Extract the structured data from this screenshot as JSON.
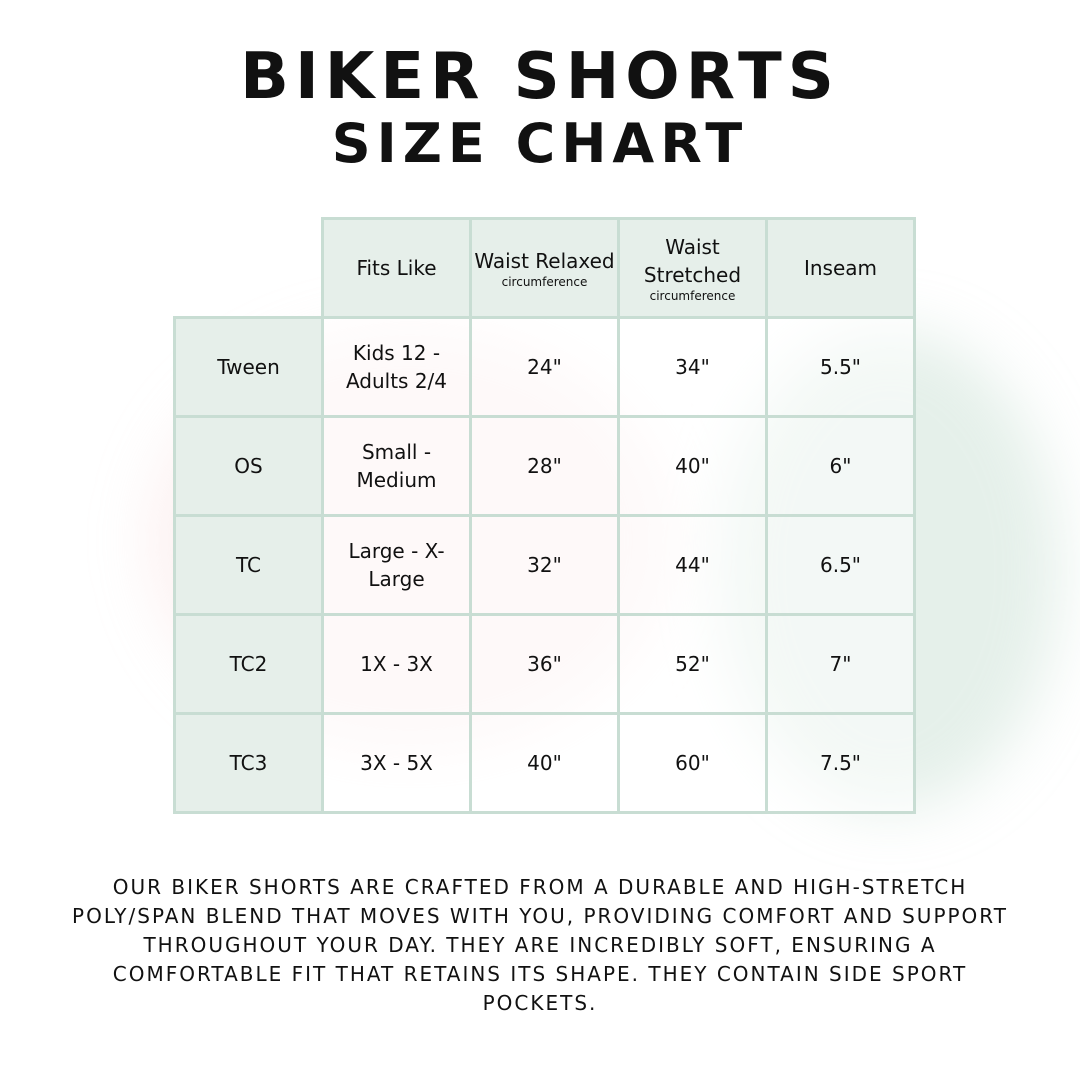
{
  "title_line1": "BIKER SHORTS",
  "title_line2": "SIZE CHART",
  "table": {
    "headers": [
      {
        "label": "Fits Like",
        "sub": ""
      },
      {
        "label": "Waist Relaxed",
        "sub": "circumference"
      },
      {
        "label": "Waist Stretched",
        "sub": "circumference"
      },
      {
        "label": "Inseam",
        "sub": ""
      }
    ],
    "rows": [
      {
        "size": "Tween",
        "fits": "Kids 12 - Adults 2/4",
        "relaxed": "24\"",
        "stretched": "34\"",
        "inseam": "5.5\""
      },
      {
        "size": "OS",
        "fits": "Small - Medium",
        "relaxed": "28\"",
        "stretched": "40\"",
        "inseam": "6\""
      },
      {
        "size": "TC",
        "fits": "Large - X-Large",
        "relaxed": "32\"",
        "stretched": "44\"",
        "inseam": "6.5\""
      },
      {
        "size": "TC2",
        "fits": "1X - 3X",
        "relaxed": "36\"",
        "stretched": "52\"",
        "inseam": "7\""
      },
      {
        "size": "TC3",
        "fits": "3X - 5X",
        "relaxed": "40\"",
        "stretched": "60\"",
        "inseam": "7.5\""
      }
    ]
  },
  "description": "Our biker shorts are crafted from a durable and high-stretch poly/span blend that moves with you, providing comfort and support throughout your day. They are incredibly soft, ensuring a comfortable fit that retains its shape. They contain side sport pockets.",
  "colors": {
    "header_fill": "#e6efea",
    "border": "#c8ddd3"
  }
}
